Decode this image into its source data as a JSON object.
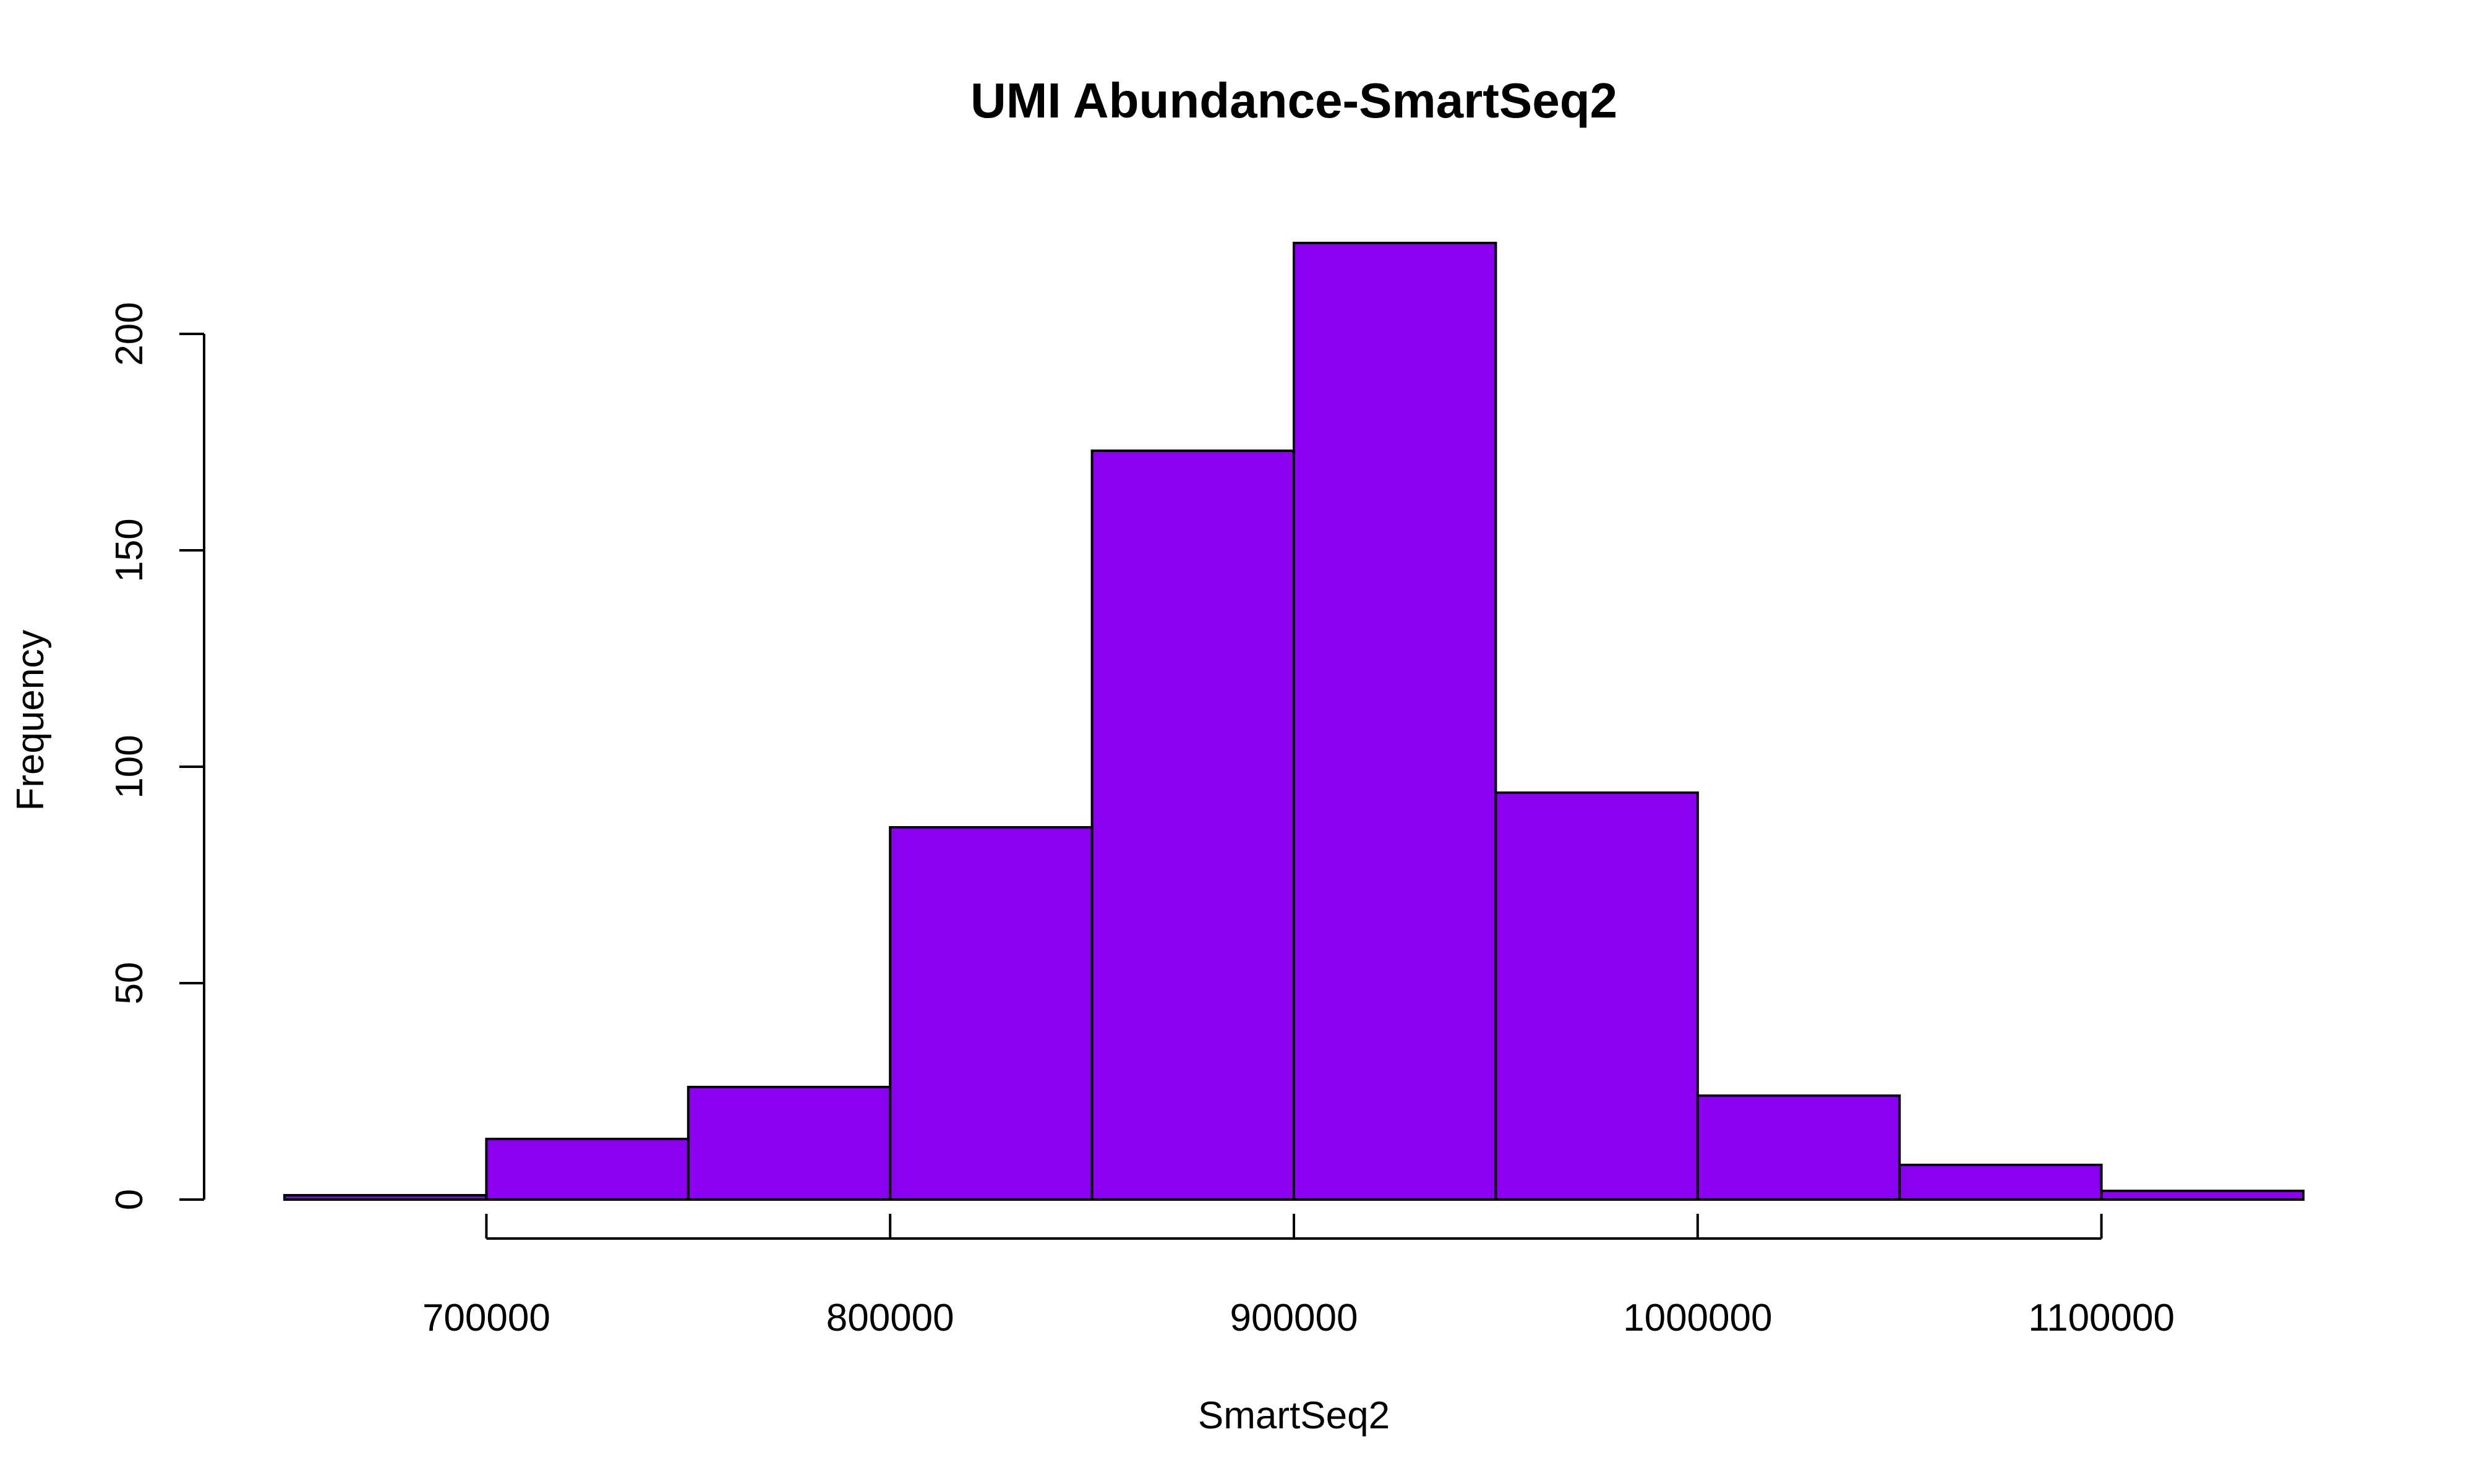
{
  "chart_data": {
    "type": "bar",
    "title": "UMI Abundance-SmartSeq2",
    "xlabel": "SmartSeq2",
    "ylabel": "Frequency",
    "bin_edges": [
      650000,
      700000,
      750000,
      800000,
      850000,
      900000,
      950000,
      1000000,
      1050000,
      1100000,
      1150000
    ],
    "values": [
      1,
      14,
      26,
      86,
      173,
      221,
      94,
      24,
      8,
      2
    ],
    "x_ticks": [
      700000,
      800000,
      900000,
      1000000,
      1100000
    ],
    "x_tick_labels": [
      "700000",
      "800000",
      "900000",
      "1000000",
      "1100000"
    ],
    "y_ticks": [
      0,
      50,
      100,
      150,
      200
    ],
    "y_tick_labels": [
      "0",
      "50",
      "100",
      "150",
      "200"
    ],
    "xlim": [
      650000,
      1150000
    ],
    "ylim": [
      0,
      221
    ],
    "bar_color": "#8B00EE",
    "grid": false,
    "legend": "none"
  }
}
